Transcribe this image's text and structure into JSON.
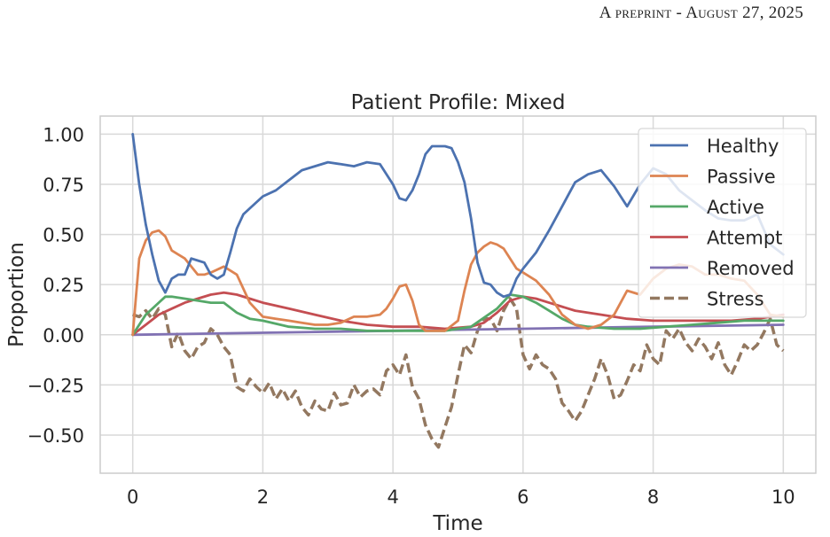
{
  "header": {
    "running_head": "A preprint - August 27, 2025"
  },
  "chart_data": {
    "type": "line",
    "title": "Patient Profile: Mixed",
    "xlabel": "Time",
    "ylabel": "Proportion",
    "xlim": [
      -0.5,
      10.5
    ],
    "ylim": [
      -0.69,
      1.09
    ],
    "xticks": [
      0,
      2,
      4,
      6,
      8,
      10
    ],
    "xtick_labels": [
      "0",
      "2",
      "4",
      "6",
      "8",
      "10"
    ],
    "yticks": [
      1.0,
      0.75,
      0.5,
      0.25,
      0.0,
      -0.25,
      -0.5
    ],
    "ytick_labels": [
      "1.00",
      "0.75",
      "0.50",
      "0.25",
      "0.00",
      "−0.25",
      "−0.50"
    ],
    "grid": true,
    "legend_position": "top-right",
    "series": [
      {
        "name": "Healthy",
        "color": "#4c72b0",
        "style": "solid",
        "x": [
          0,
          0.1,
          0.2,
          0.3,
          0.4,
          0.5,
          0.6,
          0.7,
          0.8,
          0.9,
          1.0,
          1.1,
          1.2,
          1.3,
          1.4,
          1.5,
          1.6,
          1.7,
          1.8,
          2.0,
          2.2,
          2.4,
          2.6,
          2.8,
          3.0,
          3.2,
          3.4,
          3.6,
          3.8,
          4.0,
          4.1,
          4.2,
          4.3,
          4.4,
          4.5,
          4.6,
          4.8,
          4.9,
          5.0,
          5.1,
          5.2,
          5.3,
          5.4,
          5.5,
          5.6,
          5.7,
          5.8,
          5.9,
          6.0,
          6.2,
          6.4,
          6.6,
          6.8,
          7.0,
          7.2,
          7.4,
          7.6,
          7.8,
          8.0,
          8.2,
          8.4,
          8.6,
          8.8,
          9.0,
          9.2,
          9.4,
          9.6,
          9.8,
          10.0
        ],
        "y": [
          1.0,
          0.75,
          0.55,
          0.4,
          0.27,
          0.21,
          0.28,
          0.3,
          0.3,
          0.38,
          0.37,
          0.36,
          0.3,
          0.28,
          0.3,
          0.41,
          0.53,
          0.6,
          0.63,
          0.69,
          0.72,
          0.77,
          0.82,
          0.84,
          0.86,
          0.85,
          0.84,
          0.86,
          0.85,
          0.75,
          0.68,
          0.67,
          0.72,
          0.8,
          0.9,
          0.94,
          0.94,
          0.93,
          0.86,
          0.76,
          0.58,
          0.36,
          0.26,
          0.25,
          0.21,
          0.19,
          0.2,
          0.28,
          0.33,
          0.41,
          0.52,
          0.64,
          0.76,
          0.8,
          0.82,
          0.74,
          0.64,
          0.75,
          0.83,
          0.8,
          0.72,
          0.67,
          0.62,
          0.58,
          0.57,
          0.57,
          0.6,
          0.45,
          0.4
        ]
      },
      {
        "name": "Passive",
        "color": "#dd8452",
        "style": "solid",
        "x": [
          0,
          0.1,
          0.2,
          0.3,
          0.4,
          0.5,
          0.6,
          0.7,
          0.8,
          0.9,
          1.0,
          1.1,
          1.2,
          1.4,
          1.6,
          1.8,
          2.0,
          2.2,
          2.4,
          2.6,
          2.8,
          3.0,
          3.2,
          3.4,
          3.6,
          3.8,
          3.9,
          4.0,
          4.1,
          4.2,
          4.3,
          4.4,
          4.5,
          4.6,
          4.8,
          5.0,
          5.1,
          5.2,
          5.3,
          5.4,
          5.5,
          5.6,
          5.7,
          5.8,
          5.9,
          6.0,
          6.2,
          6.4,
          6.6,
          6.8,
          7.0,
          7.2,
          7.4,
          7.6,
          7.8,
          8.0,
          8.2,
          8.4,
          8.6,
          8.8,
          9.0,
          9.2,
          9.4,
          9.6,
          9.8,
          10.0
        ],
        "y": [
          0.0,
          0.38,
          0.47,
          0.51,
          0.52,
          0.49,
          0.42,
          0.4,
          0.38,
          0.34,
          0.3,
          0.3,
          0.31,
          0.34,
          0.3,
          0.16,
          0.09,
          0.08,
          0.07,
          0.06,
          0.05,
          0.05,
          0.06,
          0.09,
          0.09,
          0.1,
          0.13,
          0.18,
          0.24,
          0.25,
          0.17,
          0.05,
          0.02,
          0.02,
          0.02,
          0.07,
          0.22,
          0.35,
          0.41,
          0.44,
          0.46,
          0.45,
          0.43,
          0.38,
          0.33,
          0.31,
          0.27,
          0.2,
          0.1,
          0.05,
          0.03,
          0.05,
          0.1,
          0.22,
          0.2,
          0.28,
          0.33,
          0.35,
          0.34,
          0.3,
          0.3,
          0.28,
          0.27,
          0.2,
          0.1,
          0.09
        ]
      },
      {
        "name": "Active",
        "color": "#55a868",
        "style": "solid",
        "x": [
          0,
          0.2,
          0.4,
          0.5,
          0.6,
          0.8,
          1.0,
          1.2,
          1.4,
          1.6,
          1.8,
          2.0,
          2.4,
          2.8,
          3.2,
          3.6,
          4.0,
          4.4,
          4.8,
          5.2,
          5.6,
          5.8,
          6.0,
          6.2,
          6.4,
          6.6,
          6.8,
          7.0,
          7.4,
          7.8,
          8.2,
          8.6,
          9.0,
          9.4,
          9.8,
          10.0
        ],
        "y": [
          0.0,
          0.1,
          0.16,
          0.19,
          0.19,
          0.18,
          0.17,
          0.16,
          0.16,
          0.11,
          0.08,
          0.07,
          0.04,
          0.03,
          0.03,
          0.02,
          0.02,
          0.02,
          0.02,
          0.04,
          0.13,
          0.2,
          0.19,
          0.16,
          0.12,
          0.08,
          0.05,
          0.04,
          0.03,
          0.03,
          0.04,
          0.05,
          0.06,
          0.07,
          0.07,
          0.07
        ]
      },
      {
        "name": "Attempt",
        "color": "#c44e52",
        "style": "solid",
        "x": [
          0,
          0.2,
          0.4,
          0.6,
          0.8,
          1.0,
          1.2,
          1.4,
          1.6,
          1.8,
          2.0,
          2.4,
          2.8,
          3.2,
          3.6,
          4.0,
          4.4,
          4.8,
          5.2,
          5.4,
          5.6,
          5.8,
          6.0,
          6.2,
          6.4,
          6.8,
          7.2,
          7.6,
          8.0,
          8.4,
          8.8,
          9.2,
          9.6,
          10.0
        ],
        "y": [
          0.0,
          0.05,
          0.1,
          0.13,
          0.16,
          0.18,
          0.2,
          0.21,
          0.2,
          0.18,
          0.16,
          0.13,
          0.1,
          0.07,
          0.05,
          0.04,
          0.04,
          0.03,
          0.04,
          0.06,
          0.11,
          0.17,
          0.19,
          0.18,
          0.16,
          0.12,
          0.1,
          0.08,
          0.07,
          0.07,
          0.07,
          0.07,
          0.08,
          0.1
        ]
      },
      {
        "name": "Removed",
        "color": "#8172b3",
        "style": "solid",
        "x": [
          0,
          2,
          4,
          6,
          8,
          10
        ],
        "y": [
          0.0,
          0.01,
          0.02,
          0.03,
          0.04,
          0.05
        ]
      },
      {
        "name": "Stress",
        "color": "#937860",
        "style": "dashed",
        "x": [
          0,
          0.1,
          0.2,
          0.3,
          0.4,
          0.5,
          0.6,
          0.7,
          0.8,
          0.9,
          1.0,
          1.1,
          1.2,
          1.3,
          1.4,
          1.5,
          1.6,
          1.7,
          1.8,
          1.9,
          2.0,
          2.1,
          2.2,
          2.3,
          2.4,
          2.5,
          2.6,
          2.7,
          2.8,
          2.9,
          3.0,
          3.1,
          3.2,
          3.3,
          3.4,
          3.5,
          3.6,
          3.7,
          3.8,
          3.9,
          4.0,
          4.1,
          4.2,
          4.3,
          4.4,
          4.5,
          4.6,
          4.7,
          4.8,
          4.9,
          5.0,
          5.1,
          5.2,
          5.3,
          5.4,
          5.5,
          5.6,
          5.7,
          5.8,
          5.9,
          6.0,
          6.1,
          6.2,
          6.3,
          6.4,
          6.5,
          6.6,
          6.7,
          6.8,
          6.9,
          7.0,
          7.1,
          7.2,
          7.3,
          7.4,
          7.5,
          7.6,
          7.7,
          7.8,
          7.9,
          8.0,
          8.1,
          8.2,
          8.3,
          8.4,
          8.5,
          8.6,
          8.7,
          8.8,
          8.9,
          9.0,
          9.1,
          9.2,
          9.3,
          9.4,
          9.5,
          9.6,
          9.7,
          9.8,
          9.9,
          10.0
        ],
        "y": [
          0.1,
          0.09,
          0.12,
          0.08,
          0.13,
          0.1,
          -0.06,
          0.01,
          -0.08,
          -0.12,
          -0.06,
          -0.04,
          0.03,
          0.0,
          -0.06,
          -0.1,
          -0.26,
          -0.28,
          -0.22,
          -0.26,
          -0.29,
          -0.24,
          -0.32,
          -0.27,
          -0.33,
          -0.28,
          -0.36,
          -0.4,
          -0.33,
          -0.37,
          -0.38,
          -0.29,
          -0.35,
          -0.34,
          -0.25,
          -0.31,
          -0.28,
          -0.27,
          -0.3,
          -0.18,
          -0.15,
          -0.2,
          -0.1,
          -0.26,
          -0.32,
          -0.45,
          -0.52,
          -0.56,
          -0.46,
          -0.36,
          -0.2,
          -0.05,
          -0.09,
          0.02,
          0.08,
          0.08,
          0.02,
          0.12,
          0.18,
          0.13,
          -0.1,
          -0.17,
          -0.1,
          -0.15,
          -0.17,
          -0.22,
          -0.34,
          -0.38,
          -0.43,
          -0.38,
          -0.3,
          -0.22,
          -0.12,
          -0.2,
          -0.32,
          -0.3,
          -0.23,
          -0.15,
          -0.18,
          -0.05,
          -0.12,
          -0.15,
          0.02,
          -0.02,
          0.03,
          -0.04,
          -0.08,
          -0.02,
          -0.06,
          -0.12,
          -0.04,
          -0.15,
          -0.2,
          -0.13,
          -0.05,
          -0.08,
          -0.05,
          0.01,
          0.08,
          -0.05,
          -0.08
        ]
      }
    ]
  }
}
